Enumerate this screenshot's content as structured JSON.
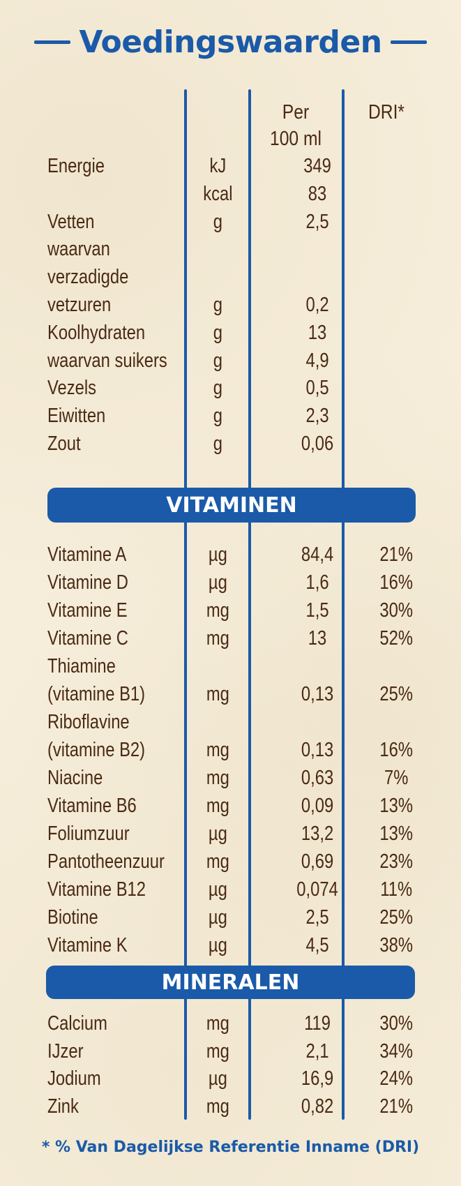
{
  "title": "Voedingswaarden",
  "header": {
    "per": "Per",
    "per_unit": "100 ml",
    "dri": "DRI*"
  },
  "nutrition": [
    {
      "name": "Energie",
      "unit": "kJ",
      "value": "349",
      "dri": ""
    },
    {
      "name": "",
      "unit": "kcal",
      "value": "83",
      "dri": ""
    },
    {
      "name": "Vetten",
      "unit": "g",
      "value": "2,5",
      "dri": ""
    },
    {
      "name": "waarvan",
      "unit": "",
      "value": "",
      "dri": ""
    },
    {
      "name": "verzadigde",
      "unit": "",
      "value": "",
      "dri": ""
    },
    {
      "name": "vetzuren",
      "unit": "g",
      "value": "0,2",
      "dri": ""
    },
    {
      "name": "Koolhydraten",
      "unit": "g",
      "value": "13",
      "dri": ""
    },
    {
      "name": "waarvan suikers",
      "unit": "g",
      "value": "4,9",
      "dri": ""
    },
    {
      "name": "Vezels",
      "unit": "g",
      "value": "0,5",
      "dri": ""
    },
    {
      "name": "Eiwitten",
      "unit": "g",
      "value": "2,3",
      "dri": ""
    },
    {
      "name": "Zout",
      "unit": "g",
      "value": "0,06",
      "dri": ""
    }
  ],
  "vitamins_title": "VITAMINEN",
  "vitamins": [
    {
      "name": "Vitamine A",
      "unit": "µg",
      "value": "84,4",
      "dri": "21%"
    },
    {
      "name": "Vitamine D",
      "unit": "µg",
      "value": "1,6",
      "dri": "16%"
    },
    {
      "name": "Vitamine E",
      "unit": "mg",
      "value": "1,5",
      "dri": "30%"
    },
    {
      "name": "Vitamine C",
      "unit": "mg",
      "value": "13",
      "dri": "52%"
    },
    {
      "name": "Thiamine",
      "unit": "",
      "value": "",
      "dri": ""
    },
    {
      "name": "(vitamine B1)",
      "unit": "mg",
      "value": "0,13",
      "dri": "25%"
    },
    {
      "name": "Riboflavine",
      "unit": "",
      "value": "",
      "dri": ""
    },
    {
      "name": "(vitamine B2)",
      "unit": "mg",
      "value": "0,13",
      "dri": "16%"
    },
    {
      "name": "Niacine",
      "unit": "mg",
      "value": "0,63",
      "dri": "7%"
    },
    {
      "name": "Vitamine B6",
      "unit": "mg",
      "value": "0,09",
      "dri": "13%"
    },
    {
      "name": "Foliumzuur",
      "unit": "µg",
      "value": "13,2",
      "dri": "13%"
    },
    {
      "name": "Pantotheenzuur",
      "unit": "mg",
      "value": "0,69",
      "dri": "23%"
    },
    {
      "name": "Vitamine B12",
      "unit": "µg",
      "value": "0,074",
      "dri": "11%"
    },
    {
      "name": "Biotine",
      "unit": "µg",
      "value": "2,5",
      "dri": "25%"
    },
    {
      "name": "Vitamine K",
      "unit": "µg",
      "value": "4,5",
      "dri": "38%"
    }
  ],
  "minerals_title": "MINERALEN",
  "minerals": [
    {
      "name": "Calcium",
      "unit": "mg",
      "value": "119",
      "dri": "30%"
    },
    {
      "name": "IJzer",
      "unit": "mg",
      "value": "2,1",
      "dri": "34%"
    },
    {
      "name": "Jodium",
      "unit": "µg",
      "value": "16,9",
      "dri": "24%"
    },
    {
      "name": "Zink",
      "unit": "mg",
      "value": "0,82",
      "dri": "21%"
    }
  ],
  "footnote": "* % Van Dagelijkse Referentie Inname (DRI)",
  "colors": {
    "accent": "#1a5aa8",
    "text": "#4a2a14",
    "background": "#f6eedb"
  }
}
